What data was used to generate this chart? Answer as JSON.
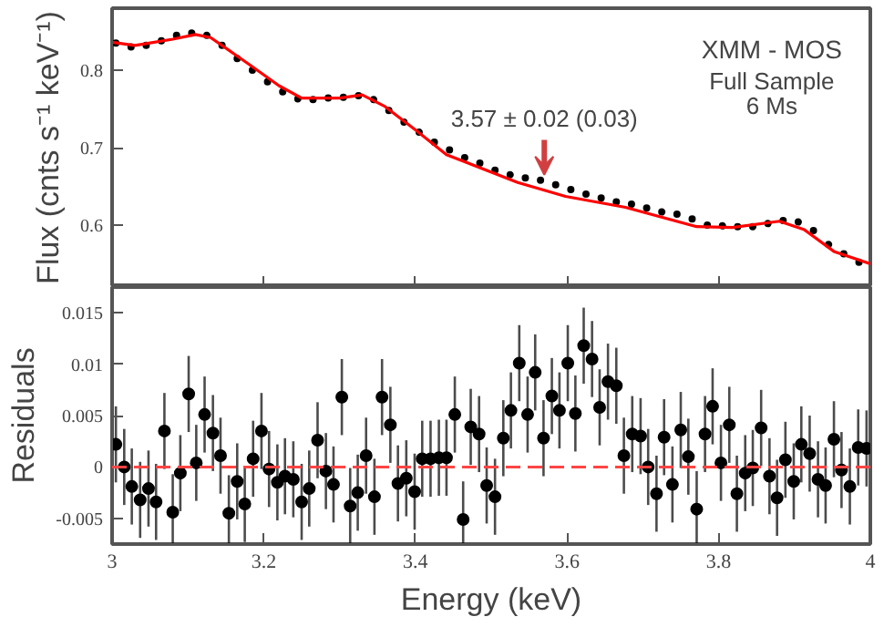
{
  "chart_data": [
    {
      "type": "scatter",
      "ylabel": "Flux (cnts s⁻¹ keV⁻¹)",
      "xlim": [
        3,
        4
      ],
      "xticks": [
        {
          "value": 3,
          "label": null
        },
        {
          "value": 3.2,
          "label": null
        },
        {
          "value": 3.4,
          "label": null
        },
        {
          "value": 3.6,
          "label": null
        },
        {
          "value": 3.8,
          "label": null
        },
        {
          "value": 4,
          "label": null
        }
      ],
      "ylim": [
        0.52,
        0.88
      ],
      "yticks": [
        0.6,
        0.7,
        0.8
      ],
      "tick_labels": "y",
      "grid": false,
      "series": [
        {
          "type": "scatter",
          "color": "#000000",
          "marker": "circle",
          "x": [
            3.005,
            3.025,
            3.045,
            3.065,
            3.085,
            3.105,
            3.125,
            3.145,
            3.165,
            3.185,
            3.205,
            3.225,
            3.245,
            3.265,
            3.285,
            3.305,
            3.325,
            3.345,
            3.365,
            3.385,
            3.405,
            3.425,
            3.445,
            3.465,
            3.485,
            3.505,
            3.525,
            3.545,
            3.565,
            3.585,
            3.605,
            3.625,
            3.645,
            3.665,
            3.685,
            3.705,
            3.725,
            3.745,
            3.765,
            3.785,
            3.805,
            3.825,
            3.845,
            3.865,
            3.885,
            3.905,
            3.925,
            3.945,
            3.965,
            3.985
          ],
          "values": [
            0.835,
            0.83,
            0.832,
            0.838,
            0.845,
            0.848,
            0.845,
            0.832,
            0.815,
            0.8,
            0.785,
            0.772,
            0.763,
            0.762,
            0.764,
            0.765,
            0.767,
            0.762,
            0.748,
            0.733,
            0.72,
            0.707,
            0.697,
            0.687,
            0.68,
            0.671,
            0.665,
            0.661,
            0.658,
            0.652,
            0.646,
            0.64,
            0.635,
            0.63,
            0.627,
            0.622,
            0.617,
            0.614,
            0.608,
            0.6,
            0.599,
            0.598,
            0.598,
            0.602,
            0.606,
            0.604,
            0.593,
            0.575,
            0.563,
            0.552
          ],
          "errors": [
            0.003,
            0.003,
            0.003,
            0.003,
            0.003,
            0.003,
            0.003,
            0.003,
            0.003,
            0.003,
            0.003,
            0.003,
            0.003,
            0.003,
            0.003,
            0.003,
            0.003,
            0.003,
            0.003,
            0.003,
            0.003,
            0.003,
            0.003,
            0.003,
            0.003,
            0.003,
            0.003,
            0.003,
            0.003,
            0.003,
            0.003,
            0.003,
            0.003,
            0.003,
            0.003,
            0.003,
            0.003,
            0.003,
            0.003,
            0.003,
            0.003,
            0.003,
            0.003,
            0.003,
            0.003,
            0.003,
            0.003,
            0.003,
            0.003,
            0.003
          ]
        },
        {
          "type": "line",
          "color": "#ff0000",
          "marker": "none",
          "line_style": "solid",
          "x": [
            3.0,
            3.03,
            3.08,
            3.11,
            3.13,
            3.18,
            3.22,
            3.25,
            3.3,
            3.33,
            3.36,
            3.4,
            3.441,
            3.535,
            3.598,
            3.677,
            3.771,
            3.818,
            3.88,
            3.913,
            3.952,
            4.0
          ],
          "values": [
            0.836,
            0.832,
            0.84,
            0.846,
            0.842,
            0.808,
            0.78,
            0.764,
            0.764,
            0.768,
            0.753,
            0.723,
            0.691,
            0.655,
            0.637,
            0.623,
            0.598,
            0.597,
            0.605,
            0.594,
            0.566,
            0.55
          ]
        }
      ],
      "annotations": [
        {
          "text": "3.57 ± 0.02 (0.03)",
          "x": 3.57,
          "y": 0.665
        },
        "XMM - MOS",
        "Full Sample",
        "6 Ms"
      ]
    },
    {
      "type": "scatter",
      "xlabel": "Energy (keV)",
      "ylabel": "Residuals",
      "xlim": [
        3,
        4
      ],
      "xticks": [
        3,
        3.2,
        3.4,
        3.6,
        3.8,
        4
      ],
      "ylim": [
        -0.0075,
        0.0175
      ],
      "yticks": [
        -0.005,
        0,
        0.005,
        0.01,
        0.015
      ],
      "grid": false,
      "ref_lines": [
        {
          "axis": "y",
          "value": 0,
          "label": null,
          "color": "#ff4444",
          "line_style": "dashed"
        }
      ],
      "series": [
        {
          "type": "scatter",
          "color": "#000000",
          "marker": "circle",
          "x": [
            3.005,
            3.016,
            3.026,
            3.037,
            3.048,
            3.058,
            3.069,
            3.08,
            3.09,
            3.101,
            3.111,
            3.122,
            3.133,
            3.143,
            3.154,
            3.165,
            3.175,
            3.186,
            3.197,
            3.207,
            3.218,
            3.228,
            3.239,
            3.25,
            3.26,
            3.271,
            3.282,
            3.292,
            3.303,
            3.314,
            3.324,
            3.335,
            3.346,
            3.356,
            3.367,
            3.377,
            3.388,
            3.399,
            3.409,
            3.42,
            3.431,
            3.441,
            3.452,
            3.463,
            3.473,
            3.484,
            3.494,
            3.505,
            3.516,
            3.526,
            3.537,
            3.548,
            3.558,
            3.569,
            3.58,
            3.59,
            3.601,
            3.611,
            3.622,
            3.633,
            3.643,
            3.654,
            3.665,
            3.675,
            3.686,
            3.697,
            3.707,
            3.718,
            3.728,
            3.739,
            3.75,
            3.76,
            3.771,
            3.782,
            3.792,
            3.803,
            3.814,
            3.824,
            3.835,
            3.845,
            3.856,
            3.867,
            3.877,
            3.888,
            3.899,
            3.909,
            3.92,
            3.931,
            3.941,
            3.952,
            3.962,
            3.973,
            3.984,
            3.995
          ],
          "values": [
            0.0022,
            0.0,
            -0.0019,
            -0.0032,
            -0.0021,
            -0.0034,
            0.0035,
            -0.0044,
            -0.0006,
            0.0071,
            0.0004,
            0.0051,
            0.0033,
            0.0011,
            -0.0045,
            -0.0014,
            -0.0036,
            0.0008,
            0.0035,
            -0.0002,
            -0.0015,
            -0.0009,
            -0.0012,
            -0.0034,
            -0.0021,
            0.0026,
            -0.0004,
            -0.0017,
            0.0068,
            -0.0038,
            -0.0025,
            0.0011,
            -0.0029,
            0.0068,
            0.0041,
            -0.0016,
            -0.0011,
            -0.0024,
            0.0008,
            0.0008,
            0.0009,
            0.0009,
            0.0051,
            -0.0051,
            0.0039,
            0.0032,
            -0.0018,
            -0.0029,
            0.0028,
            0.0055,
            0.0101,
            0.0051,
            0.0092,
            0.0028,
            0.0069,
            0.0055,
            0.0101,
            0.0052,
            0.0118,
            0.0105,
            0.0058,
            0.0083,
            0.0079,
            0.0011,
            0.0032,
            0.003,
            0.0,
            -0.0026,
            0.0029,
            -0.0017,
            0.0036,
            0.001,
            -0.0041,
            0.0032,
            0.0059,
            0.0004,
            0.0041,
            -0.0026,
            -0.0006,
            -0.0001,
            0.0038,
            -0.0009,
            -0.003,
            0.0007,
            -0.0014,
            0.0022,
            0.0013,
            -0.0012,
            -0.0018,
            0.0027,
            -0.0003,
            -0.0019,
            0.0019,
            0.0018
          ],
          "errors": [
            0.0037,
            0.0037,
            0.0037,
            0.0037,
            0.0037,
            0.0037,
            0.0037,
            0.0037,
            0.0037,
            0.0037,
            0.0037,
            0.0037,
            0.0037,
            0.0037,
            0.0037,
            0.0037,
            0.0037,
            0.0037,
            0.0037,
            0.0037,
            0.0037,
            0.0037,
            0.0037,
            0.0037,
            0.0037,
            0.0037,
            0.0037,
            0.0037,
            0.0037,
            0.0037,
            0.0037,
            0.0037,
            0.0037,
            0.0037,
            0.0037,
            0.0037,
            0.0037,
            0.0037,
            0.0037,
            0.0037,
            0.0037,
            0.0037,
            0.0037,
            0.0037,
            0.0037,
            0.0037,
            0.0037,
            0.0037,
            0.0037,
            0.0037,
            0.0037,
            0.0037,
            0.0037,
            0.0037,
            0.0037,
            0.0037,
            0.0037,
            0.0037,
            0.0037,
            0.0037,
            0.0037,
            0.0037,
            0.0037,
            0.0037,
            0.0037,
            0.0037,
            0.0037,
            0.0037,
            0.0037,
            0.0037,
            0.0037,
            0.0037,
            0.0037,
            0.0037,
            0.0037,
            0.0037,
            0.0037,
            0.0037,
            0.0037,
            0.0037,
            0.0037,
            0.0037,
            0.0037,
            0.0037,
            0.0037,
            0.0037,
            0.0037,
            0.0037,
            0.0037,
            0.0037,
            0.0037,
            0.0037,
            0.0037,
            0.0037
          ]
        }
      ]
    }
  ]
}
